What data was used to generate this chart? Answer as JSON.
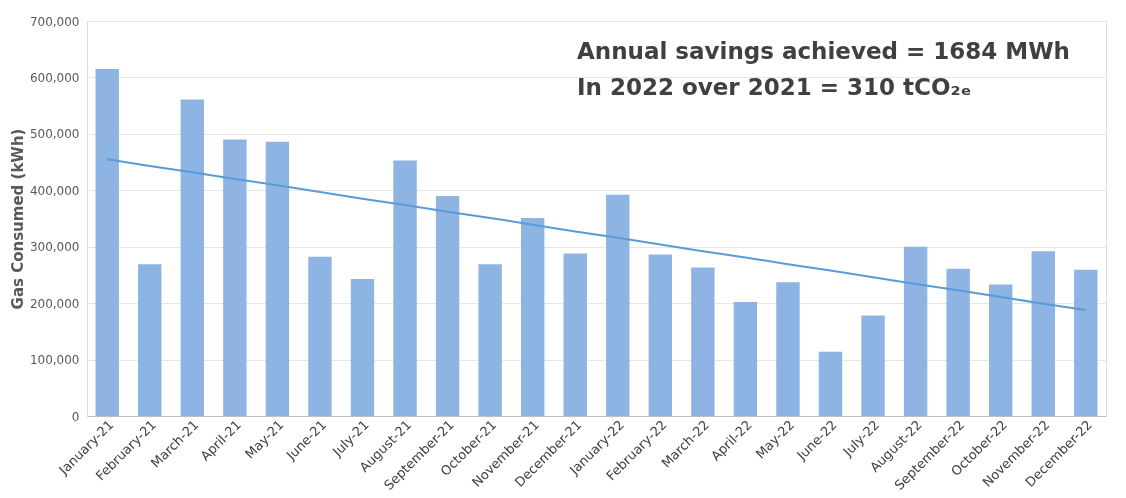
{
  "chart_data": {
    "type": "bar",
    "ylabel": "Gas Consumed (kWh)",
    "categories": [
      "January-21",
      "February-21",
      "March-21",
      "April-21",
      "May-21",
      "June-21",
      "July-21",
      "August-21",
      "September-21",
      "October-21",
      "November-21",
      "December-21",
      "January-22",
      "February-22",
      "March-22",
      "April-22",
      "May-22",
      "June-22",
      "July-22",
      "August-22",
      "September-22",
      "October-22",
      "November-22",
      "December-22"
    ],
    "series": [
      {
        "color": "#8db4e2",
        "values": [
          615000,
          269000,
          561000,
          490000,
          486000,
          282000,
          243000,
          453000,
          390000,
          269000,
          351000,
          288000,
          392000,
          286000,
          263000,
          202000,
          237000,
          114000,
          178000,
          300000,
          261000,
          233000,
          292000,
          259000
        ]
      },
      {
        "type": "line",
        "color": "#5b9bd5",
        "values": [
          455000,
          443000,
          432000,
          420000,
          409000,
          397000,
          385000,
          374000,
          362000,
          351000,
          339000,
          327000,
          316000,
          304000,
          292000,
          281000,
          269000,
          258000,
          246000,
          234000,
          223000,
          211000,
          199000,
          188000
        ]
      }
    ],
    "ylim": [
      0,
      700000
    ],
    "yticks": [
      0,
      {
        "value": 100000,
        "label": "100,000"
      },
      {
        "value": 200000,
        "label": "200,000"
      },
      {
        "value": 300000,
        "label": "300,000"
      },
      {
        "value": 400000,
        "label": "400,000"
      },
      {
        "value": 500000,
        "label": "500,000"
      },
      {
        "value": 600000,
        "label": "600,000"
      },
      {
        "value": 700000,
        "label": "700,000"
      }
    ],
    "grid": "y",
    "annotations": [
      "Annual savings achieved  = 1684 MWh",
      "In 2022 over 2021 = 310 tCO₂ₑ"
    ]
  }
}
